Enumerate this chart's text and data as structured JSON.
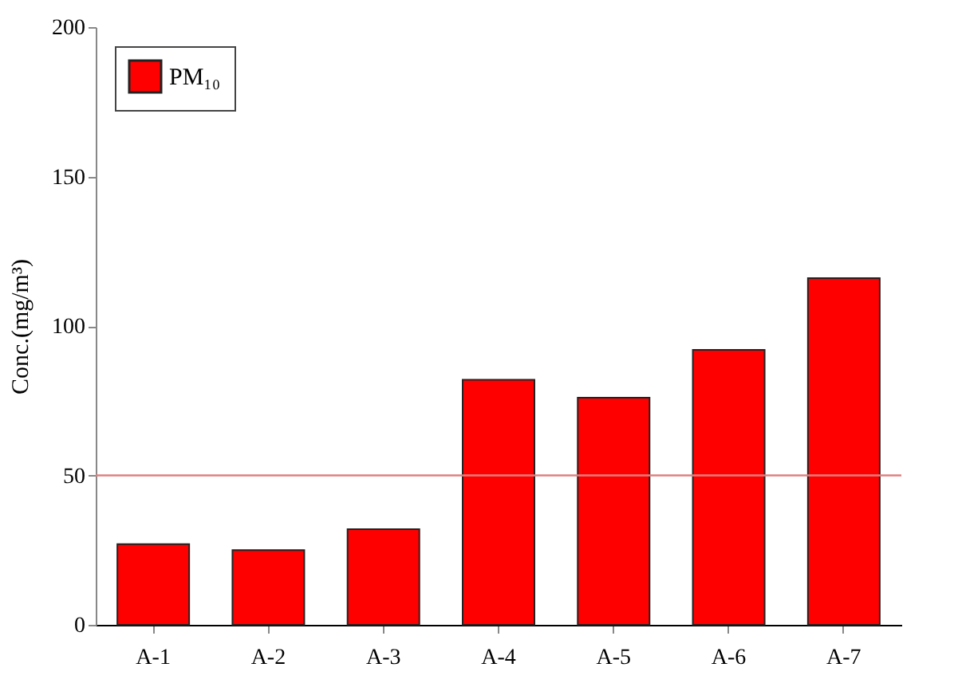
{
  "chart_data": {
    "type": "bar",
    "ylabel": "Conc.(mg/m³)",
    "categories": [
      "A-1",
      "A-2",
      "A-3",
      "A-4",
      "A-5",
      "A-6",
      "A-7"
    ],
    "series": [
      {
        "name": "PM₁₀",
        "color": "#ff0000",
        "values": [
          27,
          25,
          32,
          82,
          76,
          92,
          116
        ]
      }
    ],
    "ylim": [
      0,
      200
    ],
    "yticks": [
      0,
      50,
      100,
      150,
      200
    ],
    "ref_lines": [
      {
        "axis": "y",
        "value": 50,
        "color": "#e08080"
      }
    ],
    "grid": false,
    "legend": "top left"
  }
}
